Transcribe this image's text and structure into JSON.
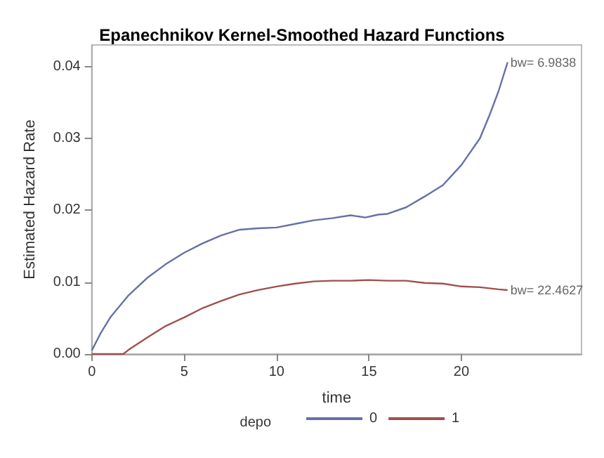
{
  "chart_data": {
    "type": "line",
    "title": "Epanechnikov Kernel-Smoothed Hazard Functions",
    "xlabel": "time",
    "ylabel": "Estimated Hazard Rate",
    "legend_title": "depo",
    "legend": "bottom",
    "grid": false,
    "marker": "none",
    "line_style": "solid",
    "xlim": [
      0,
      26.5
    ],
    "xticks": [
      0,
      5,
      10,
      15,
      20
    ],
    "ylim": [
      0,
      0.043
    ],
    "yticks": [
      {
        "value": 0,
        "label": "0.00"
      },
      {
        "value": 0.01,
        "label": "0.01"
      },
      {
        "value": 0.02,
        "label": "0.02"
      },
      {
        "value": 0.03,
        "label": "0.03"
      },
      {
        "value": 0.04,
        "label": "0.04"
      }
    ],
    "series": [
      {
        "name": "0",
        "color": "#6670a8",
        "x": [
          0,
          0.5,
          1,
          2,
          3,
          4,
          5,
          6,
          7,
          8,
          9,
          10,
          11,
          12,
          13,
          14,
          14.8,
          15.5,
          16,
          17,
          18,
          19,
          20,
          21,
          21.5,
          22,
          22.5
        ],
        "values": [
          0.0005,
          0.003,
          0.0051,
          0.0082,
          0.0106,
          0.0125,
          0.0141,
          0.0154,
          0.0165,
          0.0173,
          0.0175,
          0.0176,
          0.0181,
          0.0186,
          0.0189,
          0.0193,
          0.019,
          0.0194,
          0.0195,
          0.0204,
          0.0219,
          0.0235,
          0.0263,
          0.03,
          0.0331,
          0.0365,
          0.0406
        ]
      },
      {
        "name": "1",
        "color": "#a0504c",
        "x": [
          0,
          1.7,
          2,
          3,
          4,
          5,
          6,
          7,
          8,
          9,
          10,
          11,
          12,
          13,
          14,
          15,
          16,
          17,
          18,
          19,
          20,
          21,
          22,
          22.5
        ],
        "values": [
          0,
          0,
          0.0006,
          0.0023,
          0.0039,
          0.0051,
          0.0064,
          0.0074,
          0.0083,
          0.0089,
          0.0094,
          0.0098,
          0.0101,
          0.0102,
          0.0102,
          0.0103,
          0.0102,
          0.0102,
          0.0099,
          0.0098,
          0.0094,
          0.0093,
          0.009,
          0.0089
        ]
      }
    ],
    "annotations": [
      {
        "text": "bw= 6.9838",
        "x": 22.5,
        "y": 0.0406
      },
      {
        "text": "bw= 22.4627",
        "x": 22.5,
        "y": 0.0089
      }
    ]
  }
}
